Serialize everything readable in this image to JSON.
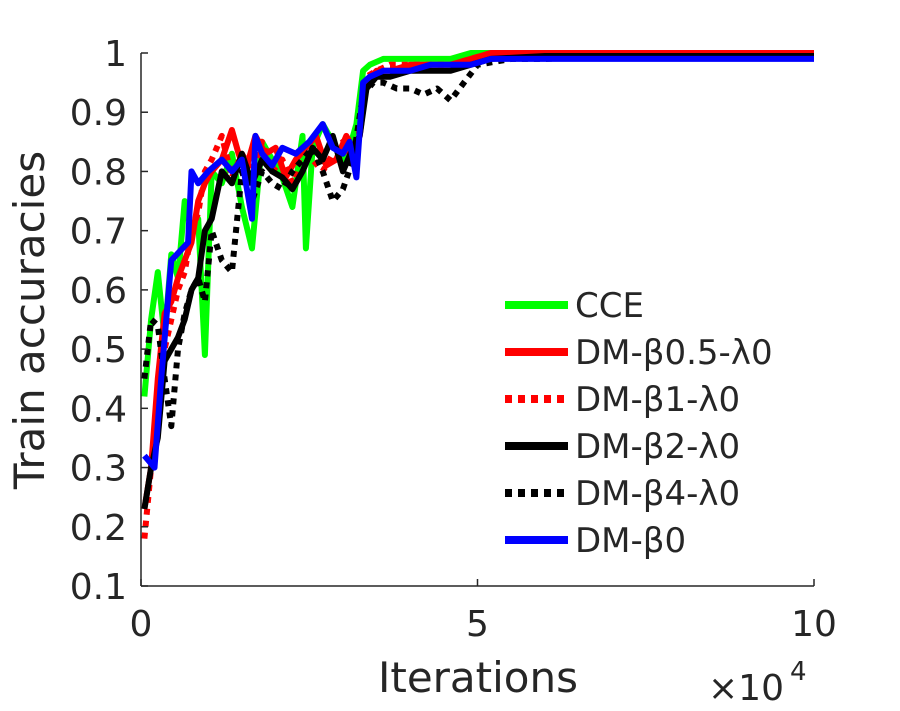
{
  "chart_data": {
    "type": "line",
    "title": "",
    "xlabel": "Iterations",
    "ylabel": "Train accuracies",
    "x_multiplier": "×10",
    "x_multiplier_exp": "4",
    "xlim": [
      0,
      10
    ],
    "ylim": [
      0.1,
      1.0
    ],
    "xticks": [
      "0",
      "5",
      "10"
    ],
    "yticks": [
      "0.1",
      "0.2",
      "0.3",
      "0.4",
      "0.5",
      "0.6",
      "0.7",
      "0.8",
      "0.9",
      "1"
    ],
    "grid": false,
    "legend_position": "lower-right",
    "series": [
      {
        "name": "CCE",
        "color": "#00ff00",
        "dash": "solid",
        "x": [
          0.05,
          0.15,
          0.25,
          0.35,
          0.45,
          0.55,
          0.65,
          0.75,
          0.85,
          0.95,
          1.05,
          1.2,
          1.35,
          1.5,
          1.65,
          1.8,
          1.95,
          2.1,
          2.25,
          2.4,
          2.45,
          2.55,
          2.7,
          2.85,
          3.0,
          3.1,
          3.2,
          3.3,
          3.4,
          3.6,
          3.8,
          4.0,
          4.3,
          4.6,
          4.9,
          5.2,
          6.0,
          7.0,
          8.0,
          9.0,
          10.0
        ],
        "y": [
          0.42,
          0.55,
          0.63,
          0.52,
          0.66,
          0.62,
          0.75,
          0.7,
          0.72,
          0.49,
          0.8,
          0.78,
          0.83,
          0.74,
          0.67,
          0.85,
          0.82,
          0.79,
          0.74,
          0.86,
          0.67,
          0.84,
          0.88,
          0.85,
          0.82,
          0.84,
          0.88,
          0.97,
          0.98,
          0.99,
          0.99,
          0.99,
          0.99,
          0.99,
          1.0,
          1.0,
          1.0,
          1.0,
          1.0,
          1.0,
          1.0
        ]
      },
      {
        "name": "DM-β0.5-λ0",
        "color": "#ff0000",
        "dash": "solid",
        "x": [
          0.05,
          0.15,
          0.25,
          0.35,
          0.45,
          0.55,
          0.65,
          0.75,
          0.85,
          0.95,
          1.05,
          1.2,
          1.35,
          1.45,
          1.55,
          1.7,
          1.85,
          2.0,
          2.15,
          2.3,
          2.45,
          2.6,
          2.75,
          2.9,
          3.05,
          3.15,
          3.25,
          3.35,
          3.5,
          3.7,
          4.0,
          4.3,
          4.6,
          4.9,
          5.2,
          6.0,
          7.0,
          8.0,
          9.0,
          10.0
        ],
        "y": [
          0.23,
          0.3,
          0.45,
          0.56,
          0.58,
          0.62,
          0.65,
          0.68,
          0.75,
          0.78,
          0.8,
          0.82,
          0.87,
          0.83,
          0.8,
          0.86,
          0.83,
          0.84,
          0.79,
          0.82,
          0.84,
          0.86,
          0.81,
          0.82,
          0.86,
          0.84,
          0.86,
          0.95,
          0.97,
          0.97,
          0.98,
          0.98,
          0.98,
          0.99,
          1.0,
          1.0,
          1.0,
          1.0,
          1.0,
          1.0
        ]
      },
      {
        "name": "DM-β1-λ0",
        "color": "#ff0000",
        "dash": "dotted",
        "x": [
          0.05,
          0.15,
          0.25,
          0.35,
          0.45,
          0.55,
          0.65,
          0.75,
          0.85,
          0.95,
          1.05,
          1.2,
          1.35,
          1.5,
          1.65,
          1.8,
          1.95,
          2.1,
          2.25,
          2.4,
          2.55,
          2.7,
          2.85,
          3.0,
          3.15,
          3.25,
          3.35,
          3.5,
          3.7,
          4.0,
          4.3,
          4.6,
          4.9,
          5.2,
          6.0,
          7.0,
          8.0,
          9.0,
          10.0
        ],
        "y": [
          0.18,
          0.3,
          0.38,
          0.5,
          0.55,
          0.6,
          0.63,
          0.7,
          0.73,
          0.8,
          0.82,
          0.86,
          0.79,
          0.83,
          0.8,
          0.85,
          0.8,
          0.82,
          0.78,
          0.84,
          0.82,
          0.8,
          0.83,
          0.85,
          0.82,
          0.87,
          0.96,
          0.97,
          0.98,
          0.98,
          0.98,
          0.98,
          0.99,
          1.0,
          1.0,
          1.0,
          1.0,
          1.0,
          1.0
        ]
      },
      {
        "name": "DM-β2-λ0",
        "color": "#000000",
        "dash": "solid",
        "x": [
          0.05,
          0.15,
          0.25,
          0.35,
          0.45,
          0.55,
          0.65,
          0.75,
          0.85,
          0.95,
          1.05,
          1.2,
          1.35,
          1.5,
          1.65,
          1.8,
          1.95,
          2.1,
          2.25,
          2.4,
          2.55,
          2.7,
          2.85,
          3.0,
          3.15,
          3.25,
          3.35,
          3.5,
          3.7,
          4.0,
          4.3,
          4.6,
          4.9,
          5.2,
          6.0,
          7.0,
          8.0,
          9.0,
          10.0
        ],
        "y": [
          0.23,
          0.3,
          0.35,
          0.48,
          0.5,
          0.52,
          0.55,
          0.6,
          0.62,
          0.7,
          0.72,
          0.8,
          0.78,
          0.83,
          0.78,
          0.82,
          0.8,
          0.79,
          0.77,
          0.8,
          0.84,
          0.82,
          0.86,
          0.8,
          0.84,
          0.86,
          0.94,
          0.96,
          0.96,
          0.97,
          0.97,
          0.97,
          0.98,
          0.99,
          0.995,
          0.995,
          0.995,
          0.995,
          0.995
        ]
      },
      {
        "name": "DM-β4-λ0",
        "color": "#000000",
        "dash": "dotted",
        "x": [
          0.05,
          0.15,
          0.25,
          0.35,
          0.45,
          0.55,
          0.65,
          0.75,
          0.85,
          0.95,
          1.05,
          1.2,
          1.35,
          1.5,
          1.65,
          1.8,
          1.95,
          2.1,
          2.25,
          2.4,
          2.55,
          2.7,
          2.85,
          3.0,
          3.15,
          3.3,
          3.45,
          3.6,
          3.8,
          4.0,
          4.2,
          4.4,
          4.6,
          4.8,
          5.0,
          5.5,
          6.0,
          7.0,
          8.0,
          9.0,
          10.0
        ],
        "y": [
          0.45,
          0.55,
          0.54,
          0.45,
          0.37,
          0.5,
          0.56,
          0.6,
          0.62,
          0.58,
          0.7,
          0.65,
          0.63,
          0.8,
          0.75,
          0.8,
          0.78,
          0.77,
          0.8,
          0.82,
          0.84,
          0.8,
          0.75,
          0.77,
          0.82,
          0.93,
          0.95,
          0.95,
          0.94,
          0.94,
          0.93,
          0.94,
          0.92,
          0.95,
          0.98,
          0.99,
          0.99,
          0.995,
          0.995,
          0.995,
          0.995
        ]
      },
      {
        "name": "DM-β0",
        "color": "#0000ff",
        "dash": "solid",
        "x": [
          0.05,
          0.2,
          0.3,
          0.45,
          0.7,
          0.75,
          0.85,
          1.0,
          1.2,
          1.35,
          1.5,
          1.65,
          1.7,
          1.8,
          1.95,
          2.1,
          2.3,
          2.5,
          2.7,
          2.85,
          3.0,
          3.1,
          3.2,
          3.3,
          3.4,
          3.6,
          3.8,
          4.0,
          4.3,
          4.6,
          4.9,
          5.2,
          6.0,
          7.0,
          8.0,
          9.0,
          10.0
        ],
        "y": [
          0.32,
          0.3,
          0.45,
          0.65,
          0.68,
          0.8,
          0.78,
          0.8,
          0.82,
          0.8,
          0.82,
          0.72,
          0.86,
          0.83,
          0.81,
          0.84,
          0.83,
          0.85,
          0.88,
          0.84,
          0.83,
          0.85,
          0.79,
          0.95,
          0.96,
          0.97,
          0.97,
          0.97,
          0.98,
          0.98,
          0.98,
          0.99,
          0.99,
          0.99,
          0.99,
          0.99,
          0.99
        ]
      }
    ]
  }
}
